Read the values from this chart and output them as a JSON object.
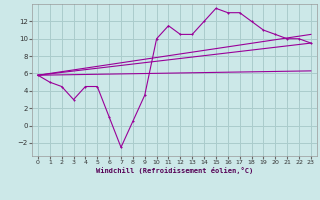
{
  "title": "",
  "xlabel": "Windchill (Refroidissement éolien,°C)",
  "ylabel": "",
  "bg_color": "#cce8e8",
  "grid_color": "#aacccc",
  "line_color": "#990099",
  "xlim": [
    -0.5,
    23.5
  ],
  "ylim": [
    -3.5,
    14.0
  ],
  "xticks": [
    0,
    1,
    2,
    3,
    4,
    5,
    6,
    7,
    8,
    9,
    10,
    11,
    12,
    13,
    14,
    15,
    16,
    17,
    18,
    19,
    20,
    21,
    22,
    23
  ],
  "yticks": [
    -2,
    0,
    2,
    4,
    6,
    8,
    10,
    12
  ],
  "line1_x": [
    0,
    1,
    2,
    3,
    4,
    5,
    6,
    7,
    8,
    9,
    10,
    11,
    12,
    13,
    14,
    15,
    16,
    17,
    18,
    19,
    20,
    21,
    22,
    23
  ],
  "line1_y": [
    5.8,
    5.0,
    4.5,
    3.0,
    4.5,
    4.5,
    1.0,
    -2.5,
    0.5,
    3.5,
    10.0,
    11.5,
    10.5,
    10.5,
    12.0,
    13.5,
    13.0,
    13.0,
    12.0,
    11.0,
    10.5,
    10.0,
    10.0,
    9.5
  ],
  "line2_x": [
    0,
    23
  ],
  "line2_y": [
    5.8,
    10.5
  ],
  "line3_x": [
    0,
    23
  ],
  "line3_y": [
    5.8,
    9.5
  ],
  "line4_x": [
    0,
    23
  ],
  "line4_y": [
    5.8,
    6.3
  ]
}
